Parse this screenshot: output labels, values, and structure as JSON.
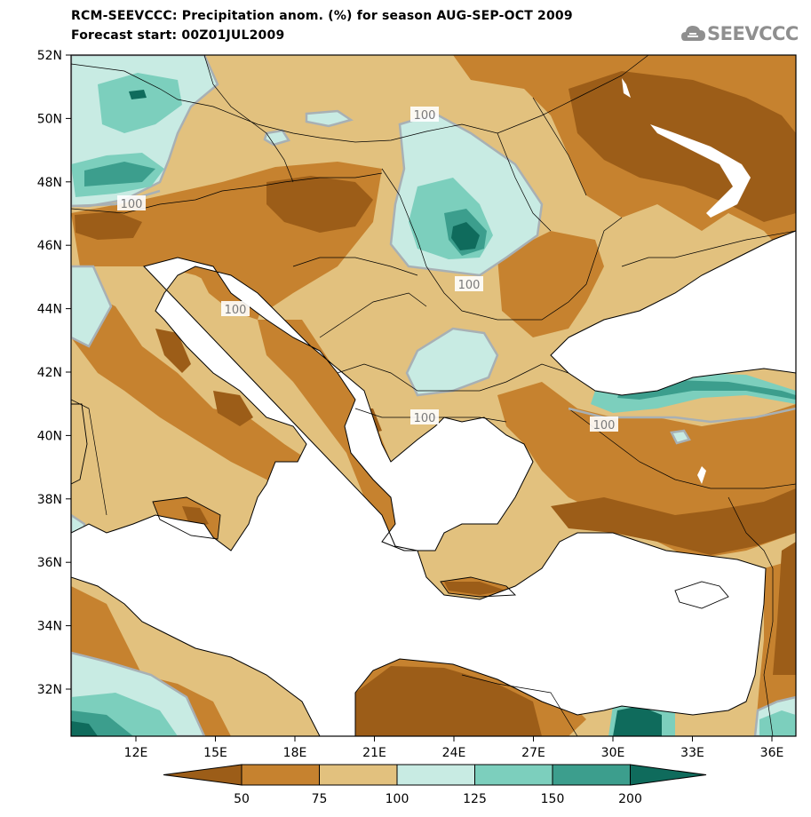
{
  "header": {
    "title": "RCM-SEEVCCC: Precipitation anom. (%) for season AUG-SEP-OCT 2009",
    "subtitle": "Forecast start: 00Z01JUL2009"
  },
  "logo": {
    "text": "SEEVCCC",
    "icon": "cloud-icon"
  },
  "map": {
    "lat_labels": [
      "52N",
      "50N",
      "48N",
      "46N",
      "44N",
      "42N",
      "40N",
      "38N",
      "36N",
      "34N",
      "32N"
    ],
    "lon_labels": [
      "12E",
      "15E",
      "18E",
      "21E",
      "24E",
      "27E",
      "30E",
      "33E",
      "36E"
    ],
    "contour_labels": [
      "100",
      "100",
      "100",
      "100",
      "100",
      "100"
    ],
    "colors": {
      "lt50": "#9c5d18",
      "50_75": "#c6822f",
      "75_100": "#e2c17e",
      "100_125": "#c8ebe3",
      "125_150": "#7ccfbd",
      "150_200": "#3c9e8d",
      "gt200": "#0f6b5c",
      "sea": "#ffffff",
      "contour": "#a8b0b4"
    }
  },
  "legend": {
    "labels": [
      "50",
      "75",
      "100",
      "125",
      "150",
      "200"
    ],
    "colors": [
      "#9c5d18",
      "#c6822f",
      "#e2c17e",
      "#c8ebe3",
      "#7ccfbd",
      "#3c9e8d",
      "#0f6b5c"
    ]
  }
}
